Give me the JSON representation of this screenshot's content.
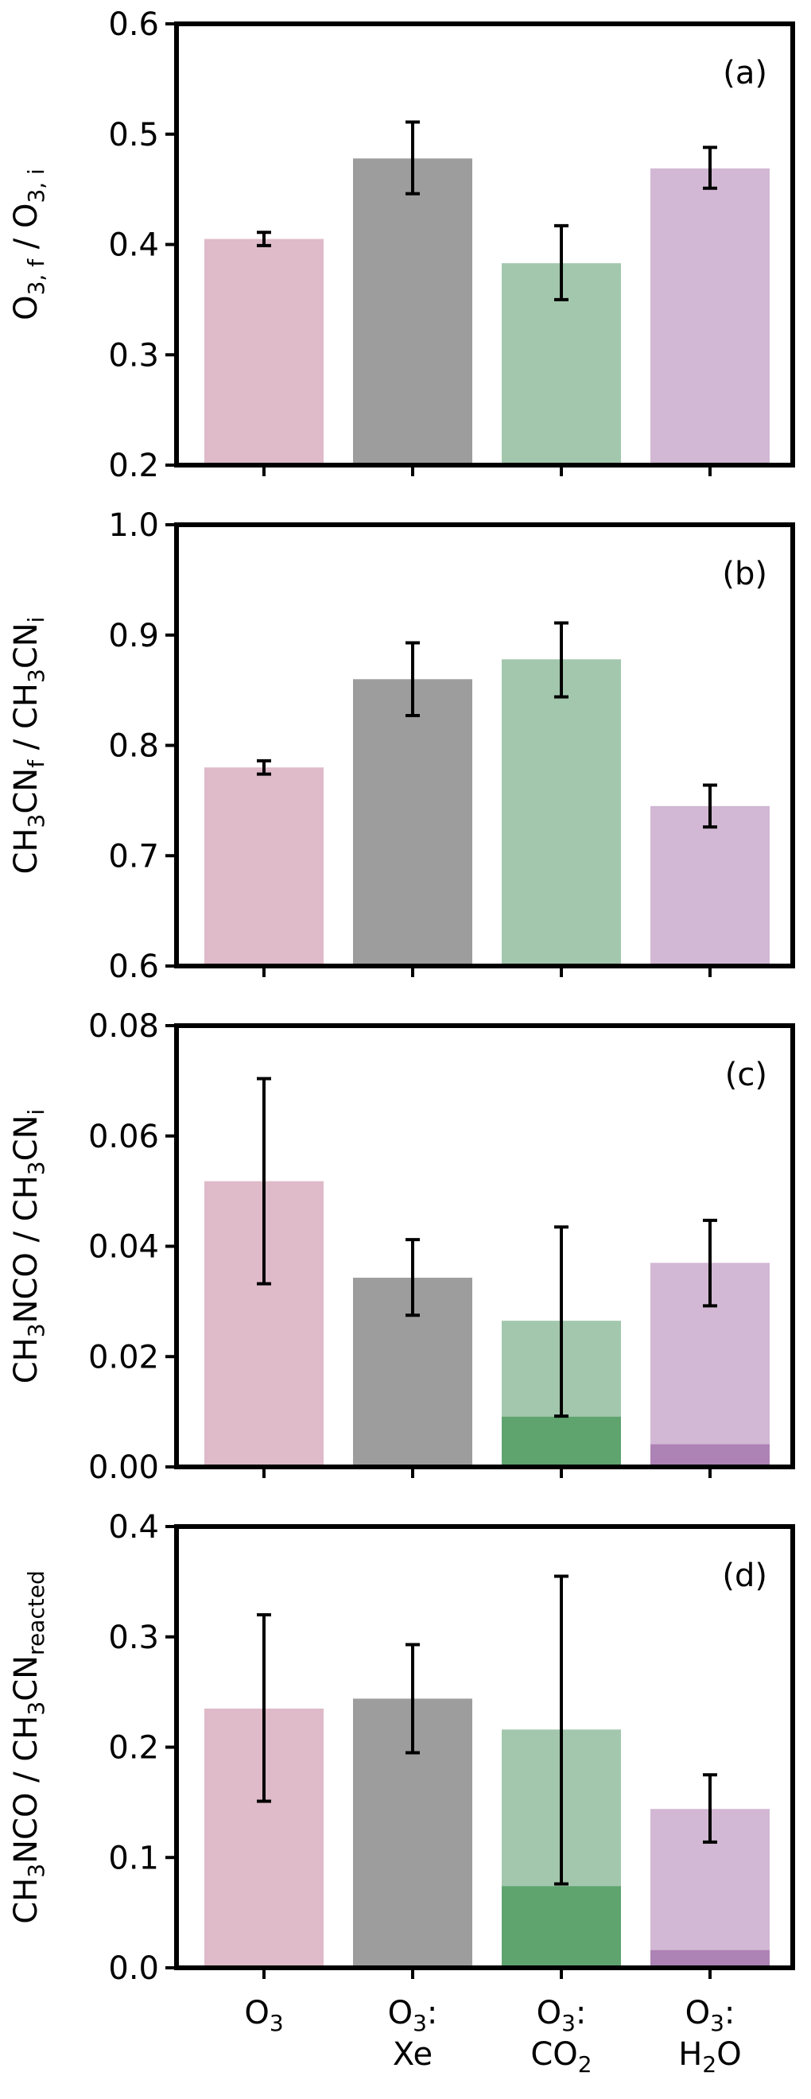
{
  "colors": {
    "O3": "#dfbac8",
    "Xe": "#9d9d9d",
    "CO2": "#a2c7ad",
    "CO2_dark": "#5fa36f",
    "H2O": "#d2b8d4",
    "H2O_dark": "#ad82b5",
    "axis": "#000000"
  },
  "x_tick_labels": [
    {
      "line1": "O",
      "sub1": "3",
      "line1b": "",
      "line2": "",
      "sub2": "",
      "line2b": ""
    },
    {
      "line1": "O",
      "sub1": "3",
      "line1b": ":",
      "line2": "Xe",
      "sub2": "",
      "line2b": ""
    },
    {
      "line1": "O",
      "sub1": "3",
      "line1b": ":",
      "line2": "CO",
      "sub2": "2",
      "line2b": ""
    },
    {
      "line1": "O",
      "sub1": "3",
      "line1b": ":",
      "line2": "H",
      "sub2": "2",
      "line2b": "O"
    }
  ],
  "chart_data": [
    {
      "type": "bar",
      "panel_label": "(a)",
      "ylabel": [
        {
          "t": "O"
        },
        {
          "t": "3, f",
          "sub": true
        },
        {
          "t": " / O"
        },
        {
          "t": "3, i",
          "sub": true
        }
      ],
      "ylim": [
        0.2,
        0.6
      ],
      "yticks": [
        0.2,
        0.3,
        0.4,
        0.5,
        0.6
      ],
      "ytick_labels": [
        "0.2",
        "0.3",
        "0.4",
        "0.5",
        "0.6"
      ],
      "categories": [
        "O3",
        "O3:Xe",
        "O3:CO2",
        "O3:H2O"
      ],
      "values": [
        0.405,
        0.478,
        0.383,
        0.469
      ],
      "errors": [
        [
          0.399,
          0.411
        ],
        [
          0.446,
          0.511
        ],
        [
          0.35,
          0.417
        ],
        [
          0.451,
          0.488
        ]
      ],
      "dark_values": [
        null,
        null,
        null,
        null
      ]
    },
    {
      "type": "bar",
      "panel_label": "(b)",
      "ylabel": [
        {
          "t": "CH"
        },
        {
          "t": "3",
          "sub": true
        },
        {
          "t": "CN"
        },
        {
          "t": "f",
          "sub": true
        },
        {
          "t": " / CH"
        },
        {
          "t": "3",
          "sub": true
        },
        {
          "t": "CN"
        },
        {
          "t": "i",
          "sub": true
        }
      ],
      "ylim": [
        0.6,
        1.0
      ],
      "yticks": [
        0.6,
        0.7,
        0.8,
        0.9,
        1.0
      ],
      "ytick_labels": [
        "0.6",
        "0.7",
        "0.8",
        "0.9",
        "1.0"
      ],
      "categories": [
        "O3",
        "O3:Xe",
        "O3:CO2",
        "O3:H2O"
      ],
      "values": [
        0.78,
        0.86,
        0.878,
        0.745
      ],
      "errors": [
        [
          0.774,
          0.786
        ],
        [
          0.827,
          0.893
        ],
        [
          0.844,
          0.911
        ],
        [
          0.726,
          0.764
        ]
      ],
      "dark_values": [
        null,
        null,
        null,
        null
      ]
    },
    {
      "type": "bar",
      "panel_label": "(c)",
      "ylabel": [
        {
          "t": "CH"
        },
        {
          "t": "3",
          "sub": true
        },
        {
          "t": "NCO / CH"
        },
        {
          "t": "3",
          "sub": true
        },
        {
          "t": "CN"
        },
        {
          "t": "i",
          "sub": true
        }
      ],
      "ylim": [
        0.0,
        0.08
      ],
      "yticks": [
        0.0,
        0.02,
        0.04,
        0.06,
        0.08
      ],
      "ytick_labels": [
        "0.00",
        "0.02",
        "0.04",
        "0.06",
        "0.08"
      ],
      "categories": [
        "O3",
        "O3:Xe",
        "O3:CO2",
        "O3:H2O"
      ],
      "values": [
        0.0518,
        0.0343,
        0.0265,
        0.037
      ],
      "errors": [
        [
          0.0332,
          0.0704
        ],
        [
          0.0275,
          0.0412
        ],
        [
          0.0092,
          0.0435
        ],
        [
          0.0292,
          0.0447
        ]
      ],
      "dark_values": [
        null,
        null,
        0.0091,
        0.0041
      ]
    },
    {
      "type": "bar",
      "panel_label": "(d)",
      "ylabel": [
        {
          "t": "CH"
        },
        {
          "t": "3",
          "sub": true
        },
        {
          "t": "NCO / CH"
        },
        {
          "t": "3",
          "sub": true
        },
        {
          "t": "CN"
        },
        {
          "t": "reacted",
          "sub": true
        }
      ],
      "ylim": [
        0.0,
        0.4
      ],
      "yticks": [
        0.0,
        0.1,
        0.2,
        0.3,
        0.4
      ],
      "ytick_labels": [
        "0.0",
        "0.1",
        "0.2",
        "0.3",
        "0.4"
      ],
      "categories": [
        "O3",
        "O3:Xe",
        "O3:CO2",
        "O3:H2O"
      ],
      "values": [
        0.235,
        0.244,
        0.216,
        0.144
      ],
      "errors": [
        [
          0.151,
          0.32
        ],
        [
          0.195,
          0.293
        ],
        [
          0.076,
          0.355
        ],
        [
          0.114,
          0.175
        ]
      ],
      "dark_values": [
        null,
        null,
        0.074,
        0.016
      ]
    }
  ]
}
